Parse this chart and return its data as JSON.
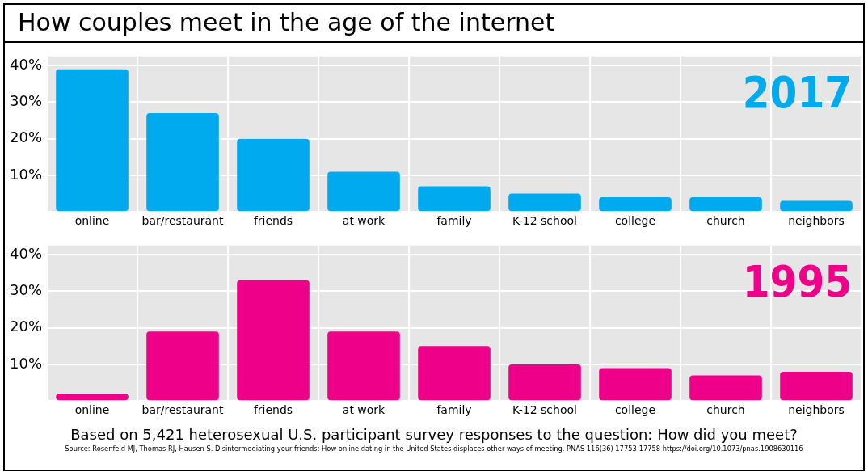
{
  "chart_data": [
    {
      "type": "bar",
      "title": "How couples meet in the age of the internet",
      "categories": [
        "online",
        "bar/restaurant",
        "friends",
        "at work",
        "family",
        "K-12 school",
        "college",
        "church",
        "neighbors"
      ],
      "series": [
        {
          "name": "2017",
          "color": "#00aaee",
          "values": [
            39,
            27,
            20,
            11,
            7,
            5,
            4,
            4,
            3
          ]
        }
      ],
      "ylim": [
        0,
        42.5
      ],
      "yticks": [
        {
          "value": 0,
          "label": null
        },
        {
          "value": 10,
          "label": "10%"
        },
        {
          "value": 20,
          "label": "20%"
        },
        {
          "value": 30,
          "label": "30%"
        },
        {
          "value": 40,
          "label": "40%"
        }
      ],
      "grid": true,
      "legend": false
    },
    {
      "type": "bar",
      "categories": [
        "online",
        "bar/restaurant",
        "friends",
        "at work",
        "family",
        "K-12 school",
        "college",
        "church",
        "neighbors"
      ],
      "series": [
        {
          "name": "1995",
          "color": "#ee0088",
          "values": [
            2,
            19,
            33,
            19,
            15,
            10,
            9,
            7,
            8
          ]
        }
      ],
      "ylim": [
        0,
        42.5
      ],
      "yticks": [
        {
          "value": 0,
          "label": null
        },
        {
          "value": 10,
          "label": "10%"
        },
        {
          "value": 20,
          "label": "20%"
        },
        {
          "value": 30,
          "label": "30%"
        },
        {
          "value": 40,
          "label": "40%"
        }
      ],
      "grid": true,
      "legend": false,
      "annotations": [
        "Based on 5,421 heterosexual U.S. participant survey responses to the question: How did you meet?",
        "Source: Rosenfeld MJ, Thomas RJ, Hausen S. Disintermediating your friends: How online dating in the United States displaces other ways of meeting. PNAS 116(36) 17753-17758 https://doi.org/10.1073/pnas.1908630116"
      ]
    }
  ]
}
